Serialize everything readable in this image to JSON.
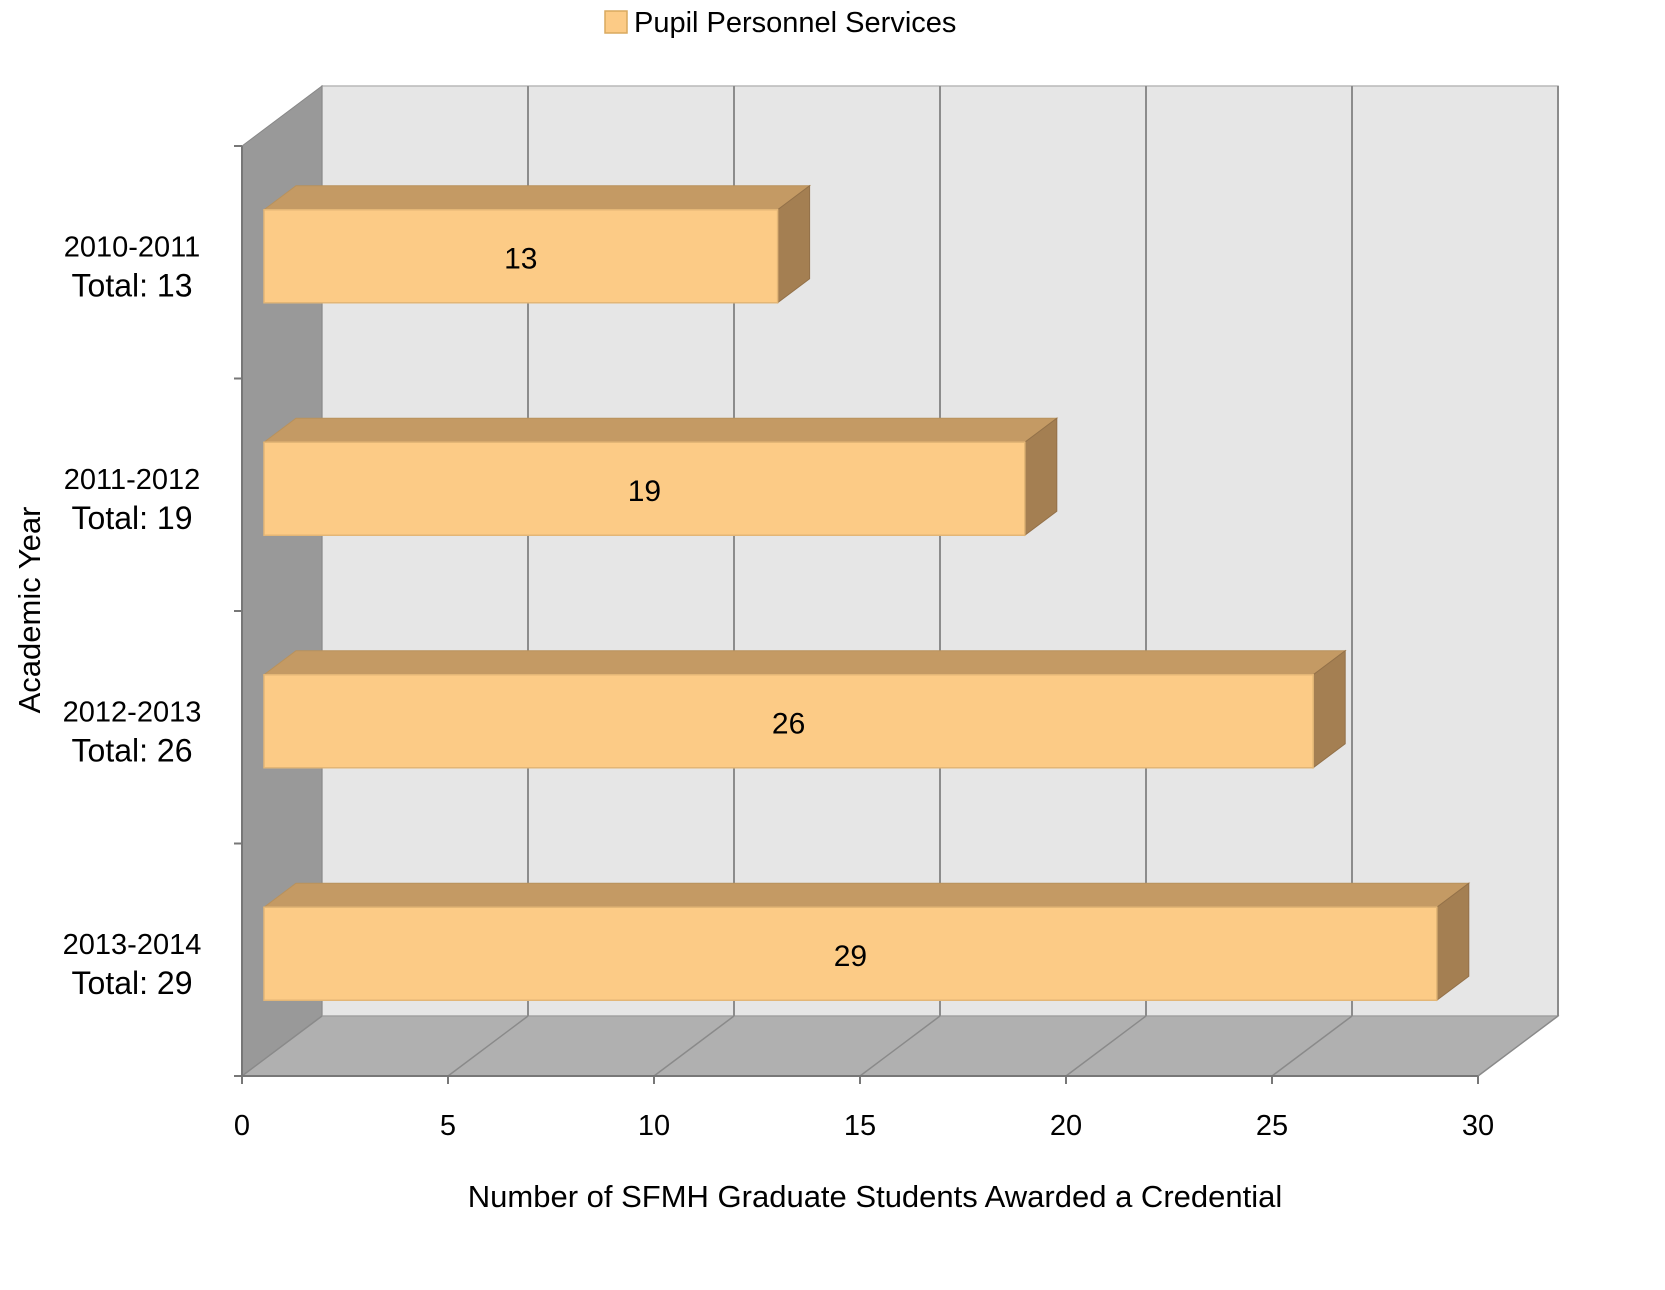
{
  "chart_data": {
    "type": "bar",
    "orientation": "horizontal",
    "three_d": true,
    "title": "",
    "legend": {
      "position": "top-center",
      "entries": [
        "Pupil Personnel Services"
      ]
    },
    "categories": [
      "2010-2011",
      "2011-2012",
      "2012-2013",
      "2013-2014"
    ],
    "category_sublabels": [
      "Total: 13",
      "Total: 19",
      "Total: 26",
      "Total: 29"
    ],
    "series": [
      {
        "name": "Pupil Personnel Services",
        "values": [
          13,
          19,
          26,
          29
        ],
        "color": "#fccb86"
      }
    ],
    "data_labels": [
      "13",
      "19",
      "26",
      "29"
    ],
    "xlabel": "Number of SFMH Graduate Students Awarded a Credential",
    "ylabel": "Academic Year",
    "xlim": [
      0,
      30
    ],
    "xticks": [
      "0",
      "5",
      "10",
      "15",
      "20",
      "25",
      "30"
    ],
    "grid": true,
    "colors": {
      "bar_front": "#fccb86",
      "bar_top": "#c49a64",
      "bar_side": "#a47f52",
      "back_wall": "#e6e6e6",
      "side_wall": "#999999",
      "floor": "#b0b0b0",
      "gridline": "#8c8c8c"
    }
  }
}
